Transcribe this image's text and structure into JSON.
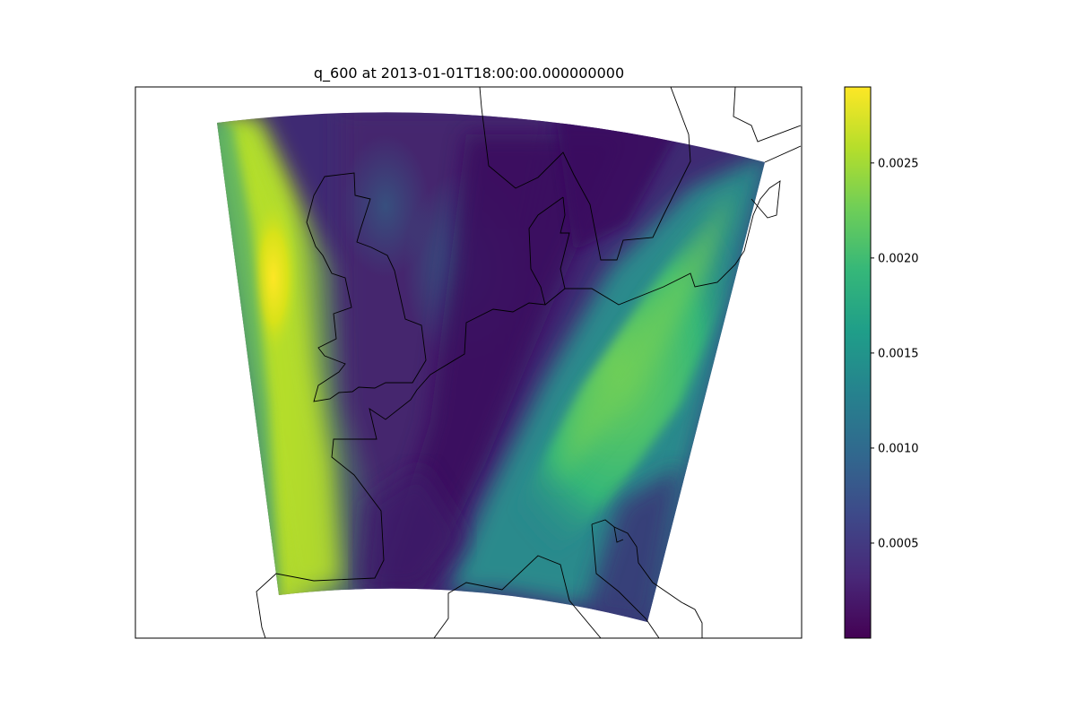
{
  "figure": {
    "title": "q_600 at 2013-01-01T18:00:00.000000000"
  },
  "colorbar": {
    "colormap": "viridis",
    "min": 0.0,
    "max": 0.0029,
    "ticks": [
      {
        "value": 0.0005,
        "label": "0.0005"
      },
      {
        "value": 0.001,
        "label": "0.0010"
      },
      {
        "value": 0.0015,
        "label": "0.0015"
      },
      {
        "value": 0.002,
        "label": "0.0020"
      },
      {
        "value": 0.0025,
        "label": "0.0025"
      }
    ],
    "stops": [
      "#440154",
      "#482878",
      "#3e4989",
      "#31688e",
      "#26828e",
      "#1f9e89",
      "#35b779",
      "#6ece58",
      "#b5de2b",
      "#fde725"
    ]
  },
  "map": {
    "field": "q_600",
    "projection": "curved regional domain",
    "coastlines": true,
    "colors": {
      "background_dark": "#3b1c6b",
      "dry_band": "#451a6b",
      "moist_west": "#b5de2b",
      "moist_west_peak": "#fde725",
      "moist_east": "#44bf70",
      "moist_east_peak": "#7ad151",
      "coastline": "#000000"
    }
  }
}
